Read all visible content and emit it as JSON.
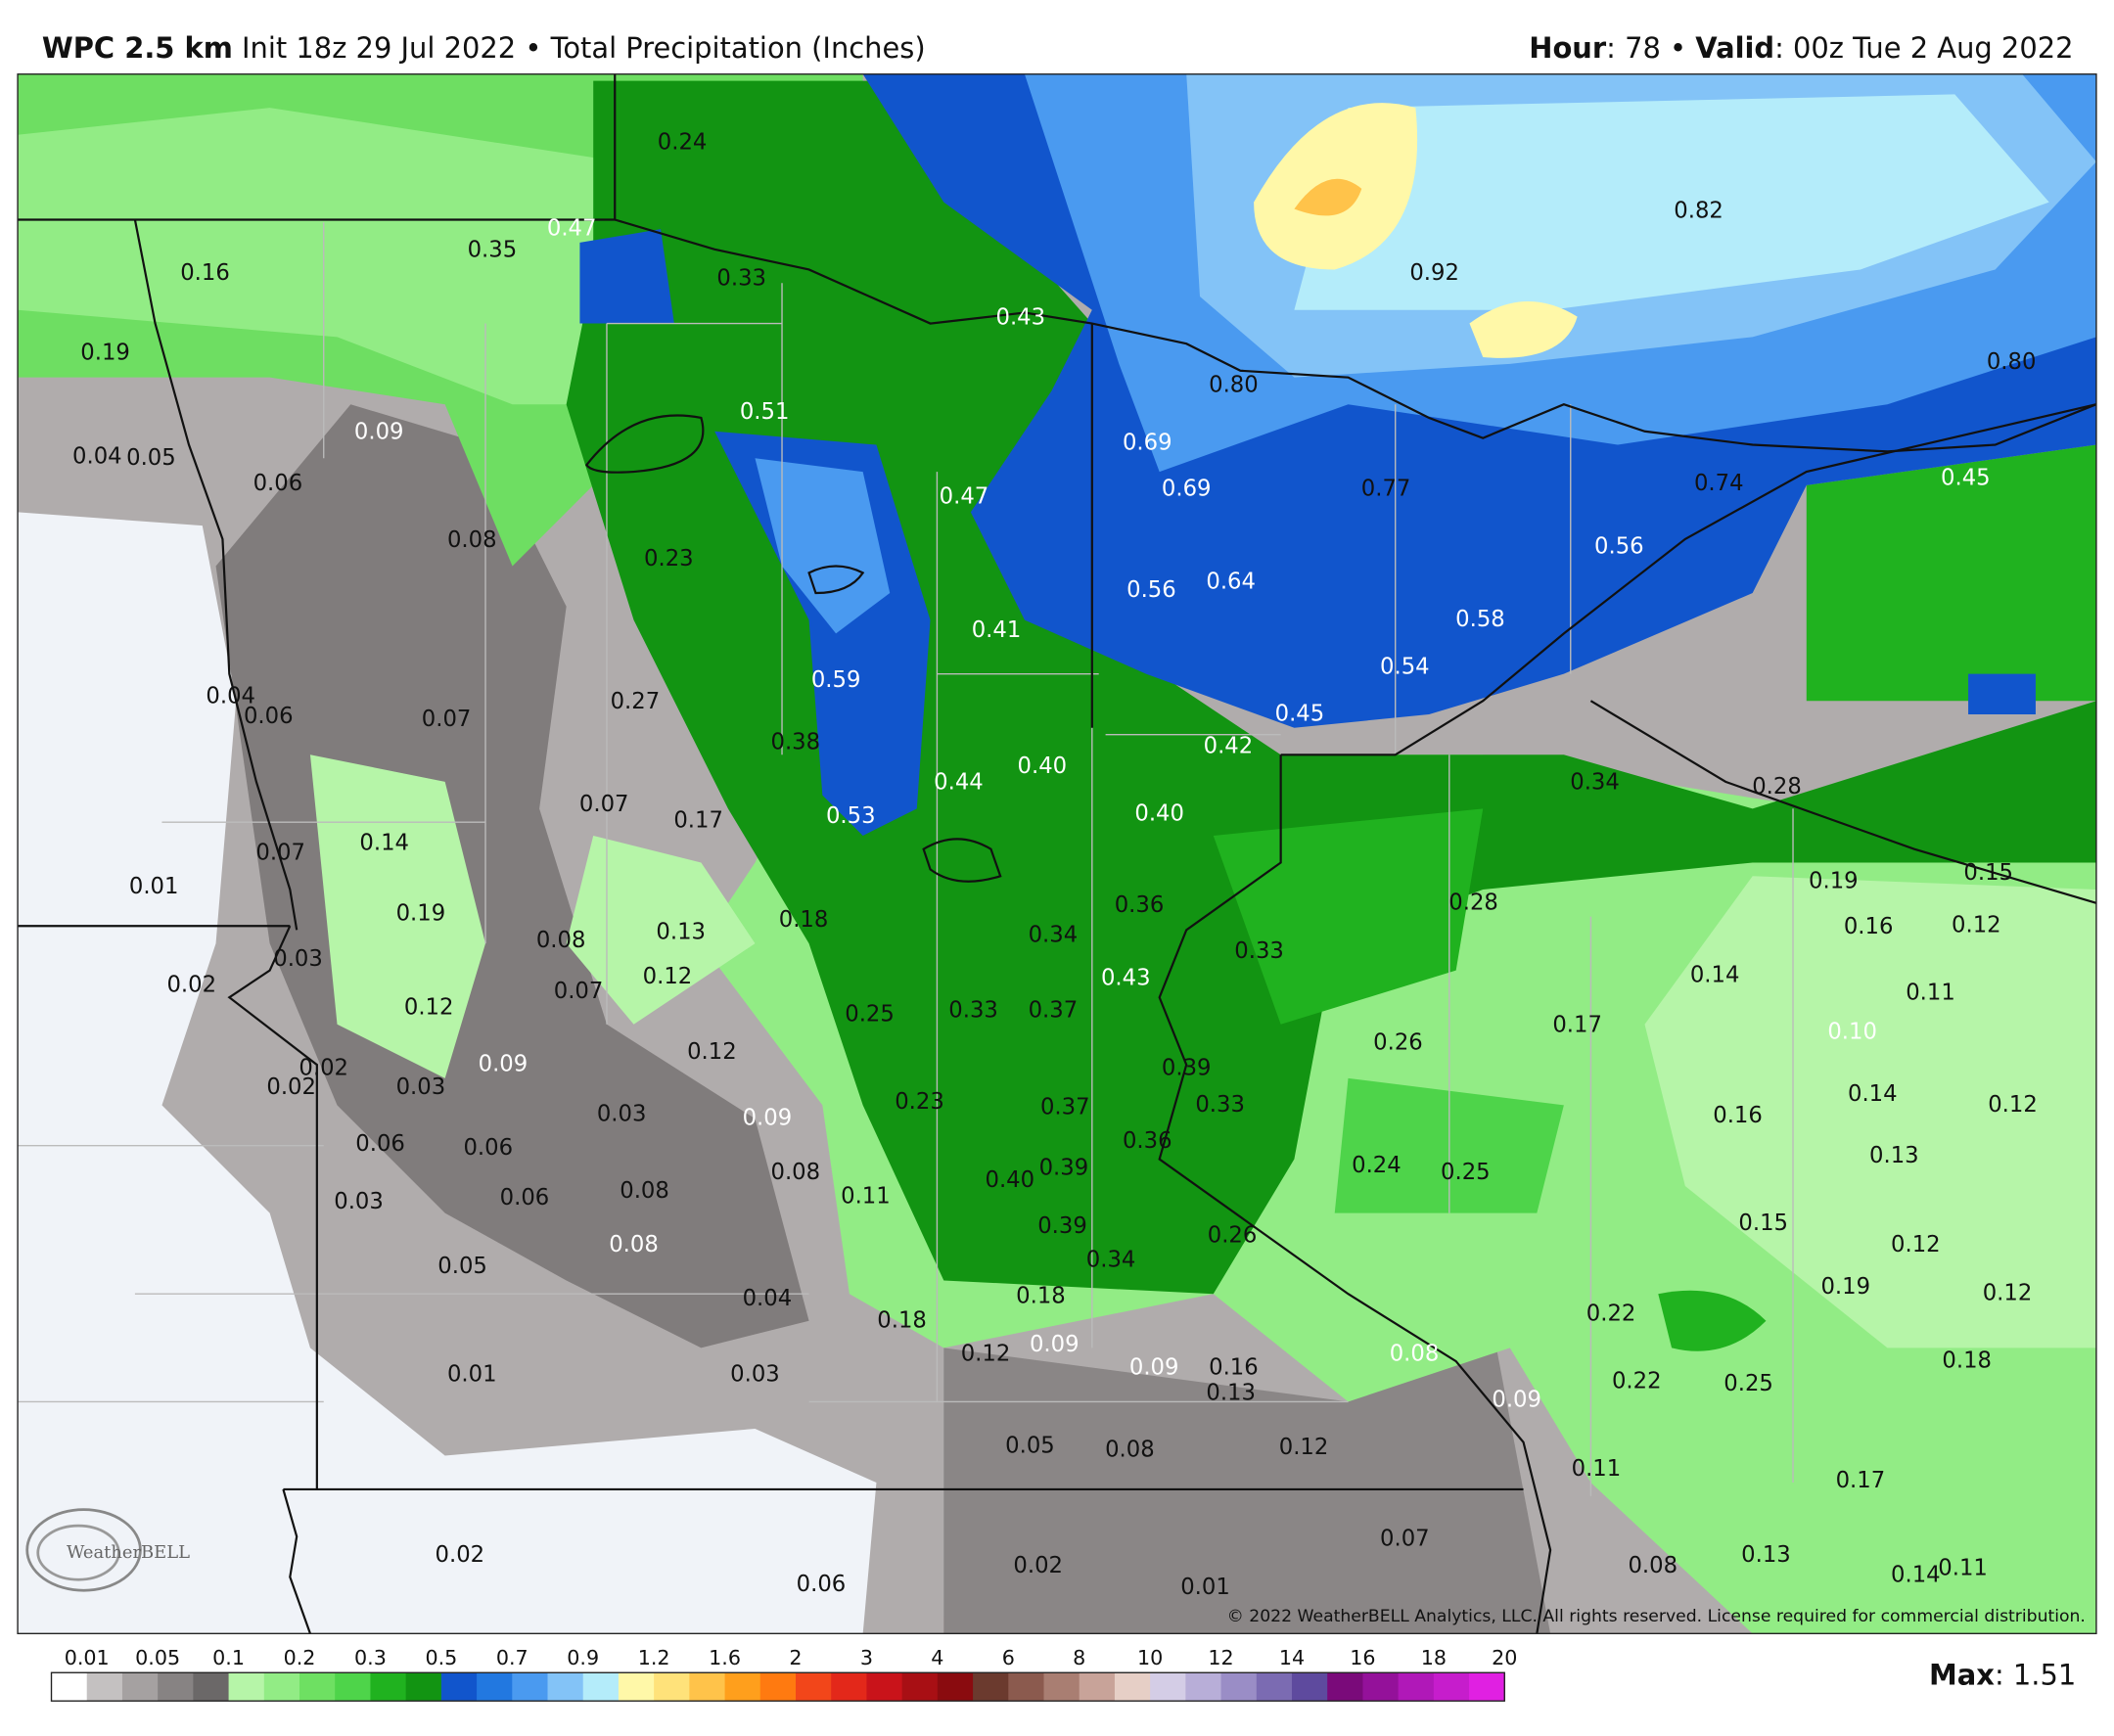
{
  "header": {
    "model": "WPC 2.5 km",
    "description": " Init 18z 29 Jul 2022 • Total Precipitation (Inches)",
    "hour_label": "Hour",
    "hour_text": ": 78 • ",
    "valid_label": "Valid",
    "valid_text": ": 00z Tue 2 Aug 2022"
  },
  "map": {
    "labels": [
      "0.24",
      "0.47",
      "0.35",
      "0.16",
      "0.33",
      "0.43",
      "0.19",
      "0.51",
      "0.09",
      "0.04",
      "0.05",
      "0.06",
      "0.47",
      "0.69",
      "0.69",
      "0.80",
      "0.92",
      "0.82",
      "0.80",
      "0.77",
      "0.74",
      "0.45",
      "0.08",
      "0.23",
      "0.56",
      "0.64",
      "0.56",
      "0.41",
      "0.58",
      "0.54",
      "0.59",
      "0.27",
      "0.04",
      "0.06",
      "0.07",
      "0.45",
      "0.42",
      "0.38",
      "0.34",
      "0.28",
      "0.44",
      "0.40",
      "0.53",
      "0.40",
      "0.07",
      "0.17",
      "0.07",
      "0.14",
      "0.01",
      "0.19",
      "0.15",
      "0.36",
      "0.28",
      "0.19",
      "0.08",
      "0.13",
      "0.18",
      "0.34",
      "0.16",
      "0.12",
      "0.33",
      "0.03",
      "0.02",
      "0.07",
      "0.12",
      "0.43",
      "0.14",
      "0.11",
      "0.12",
      "0.25",
      "0.33",
      "0.37",
      "0.17",
      "0.10",
      "0.26",
      "0.09",
      "0.02",
      "0.02",
      "0.03",
      "0.12",
      "0.39",
      "0.03",
      "0.09",
      "0.23",
      "0.37",
      "0.33",
      "0.14",
      "0.16",
      "0.12",
      "0.06",
      "0.06",
      "0.36",
      "0.13",
      "0.08",
      "0.39",
      "0.40",
      "0.24",
      "0.25",
      "0.03",
      "0.06",
      "0.08",
      "0.11",
      "0.39",
      "0.26",
      "0.15",
      "0.12",
      "0.08",
      "0.34",
      "0.05",
      "0.04",
      "0.18",
      "0.19",
      "0.12",
      "0.18",
      "0.22",
      "0.12",
      "0.09",
      "0.09",
      "0.16",
      "0.08",
      "0.13",
      "0.01",
      "0.03",
      "0.22",
      "0.25",
      "0.09",
      "0.18",
      "0.05",
      "0.08",
      "0.12",
      "0.11",
      "0.17",
      "0.07",
      "0.02",
      "0.02",
      "0.06",
      "0.01",
      "0.08",
      "0.13",
      "0.14",
      "0.11"
    ]
  },
  "copyright": "© 2022 WeatherBELL Analytics, LLC. All rights reserved. License required for commercial distribution.",
  "logo": "WeatherBELL",
  "colorbar": {
    "ticks": [
      0.01,
      0.05,
      0.1,
      0.2,
      0.3,
      0.5,
      0.7,
      0.9,
      1.2,
      1.6,
      2,
      3,
      4,
      6,
      8,
      10,
      12,
      14,
      16,
      18,
      20
    ],
    "colors": [
      "#ffffff",
      "#c4c1c1",
      "#a5a1a1",
      "#878383",
      "#6b6868",
      "#b6f5a8",
      "#92ec85",
      "#6ee062",
      "#4ed44a",
      "#20b21f",
      "#129412",
      "#1155cc",
      "#2278e0",
      "#4a9af0",
      "#83c3f7",
      "#b4ecfa",
      "#fff8a8",
      "#ffe27a",
      "#ffc34a",
      "#ff9f1c",
      "#ff7a10",
      "#f2461a",
      "#e3281a",
      "#c9131a",
      "#a80f14",
      "#8a0b0f",
      "#6b3a2e",
      "#8b5a4e",
      "#a97e72",
      "#c8a399",
      "#e6cfc6",
      "#d4cde6",
      "#b8aed8",
      "#9a8dc6",
      "#7b6bb2",
      "#5e4a9e",
      "#7a0a7a",
      "#94119a",
      "#b018b8",
      "#c61dcc",
      "#e020e2"
    ]
  },
  "footer": {
    "max_label": "Max",
    "max_text": ": 1.51"
  }
}
